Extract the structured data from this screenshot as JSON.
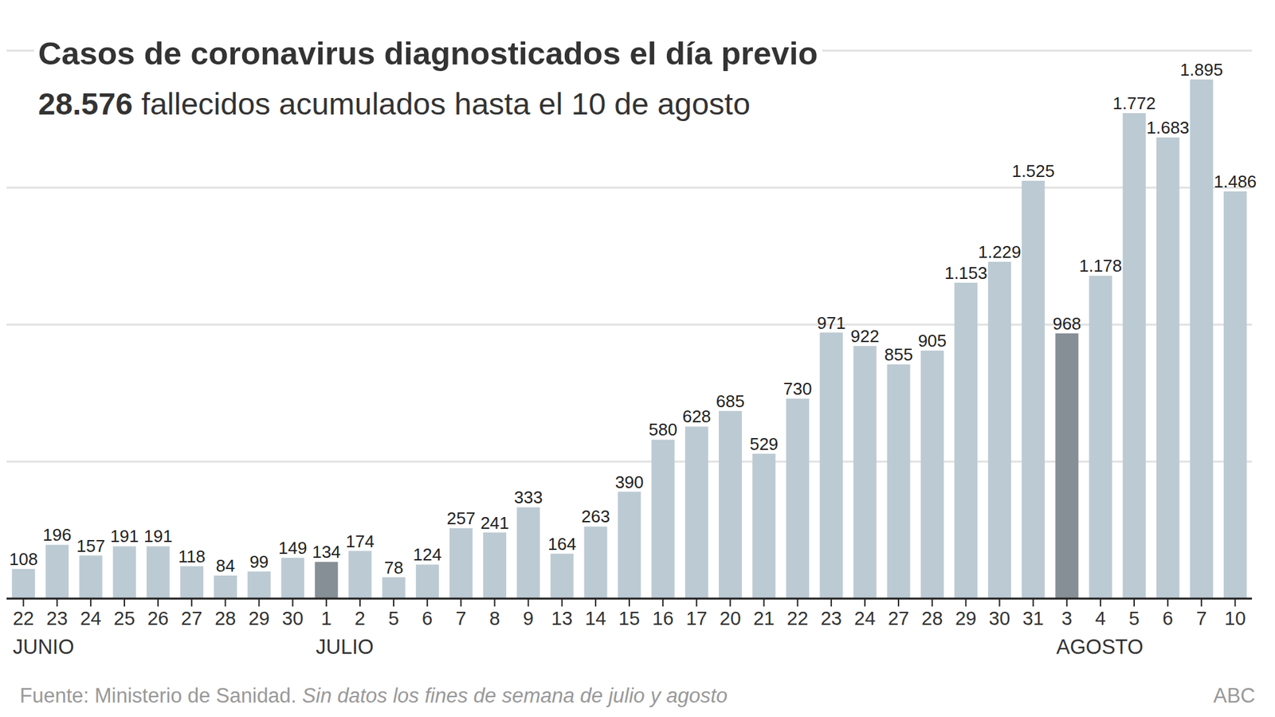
{
  "chart_data": {
    "type": "bar",
    "title": "Casos de coronavirus diagnosticados el día previo",
    "subtitle": {
      "bold": "28.576",
      "text": "fallecidos acumulados hasta el 10 de agosto"
    },
    "categories": [
      "22",
      "23",
      "24",
      "25",
      "26",
      "27",
      "28",
      "29",
      "30",
      "1",
      "2",
      "5",
      "6",
      "7",
      "8",
      "9",
      "13",
      "14",
      "15",
      "16",
      "17",
      "20",
      "21",
      "22",
      "23",
      "24",
      "27",
      "28",
      "29",
      "30",
      "31",
      "3",
      "4",
      "5",
      "6",
      "7",
      "10"
    ],
    "values": [
      108,
      196,
      157,
      191,
      191,
      118,
      84,
      99,
      149,
      134,
      174,
      78,
      124,
      257,
      241,
      333,
      164,
      263,
      390,
      580,
      628,
      685,
      529,
      730,
      971,
      922,
      855,
      905,
      1153,
      1229,
      1525,
      968,
      1178,
      1772,
      1683,
      1895,
      1486
    ],
    "value_labels": [
      "108",
      "196",
      "157",
      "191",
      "191",
      "118",
      "84",
      "99",
      "149",
      "134",
      "174",
      "78",
      "124",
      "257",
      "241",
      "333",
      "164",
      "263",
      "390",
      "580",
      "628",
      "685",
      "529",
      "730",
      "971",
      "922",
      "855",
      "905",
      "1.153",
      "1.229",
      "1.525",
      "968",
      "1.178",
      "1.772",
      "1.683",
      "1.895",
      "1.486"
    ],
    "colors": [
      "#bccad3",
      "#bccad3",
      "#bccad3",
      "#bccad3",
      "#bccad3",
      "#bccad3",
      "#bccad3",
      "#bccad3",
      "#bccad3",
      "#868e96",
      "#bccad3",
      "#bccad3",
      "#bccad3",
      "#bccad3",
      "#bccad3",
      "#bccad3",
      "#bccad3",
      "#bccad3",
      "#bccad3",
      "#bccad3",
      "#bccad3",
      "#bccad3",
      "#bccad3",
      "#bccad3",
      "#bccad3",
      "#bccad3",
      "#bccad3",
      "#bccad3",
      "#bccad3",
      "#bccad3",
      "#bccad3",
      "#868e96",
      "#bccad3",
      "#bccad3",
      "#bccad3",
      "#bccad3",
      "#bccad3"
    ],
    "month_labels": [
      {
        "label": "JUNIO",
        "at": 0
      },
      {
        "label": "JULIO",
        "at": 9
      },
      {
        "label": "AGOSTO",
        "at": 31
      }
    ],
    "ylim": [
      0,
      2000
    ],
    "yticks": [
      0,
      500,
      1000,
      1500,
      2000
    ],
    "grid": true,
    "data_labels": true,
    "tick_labels": "x",
    "source": "Fuente: Ministerio de Sanidad.",
    "note": "Sin datos los fines de semana de julio y agosto",
    "credit": "ABC"
  }
}
